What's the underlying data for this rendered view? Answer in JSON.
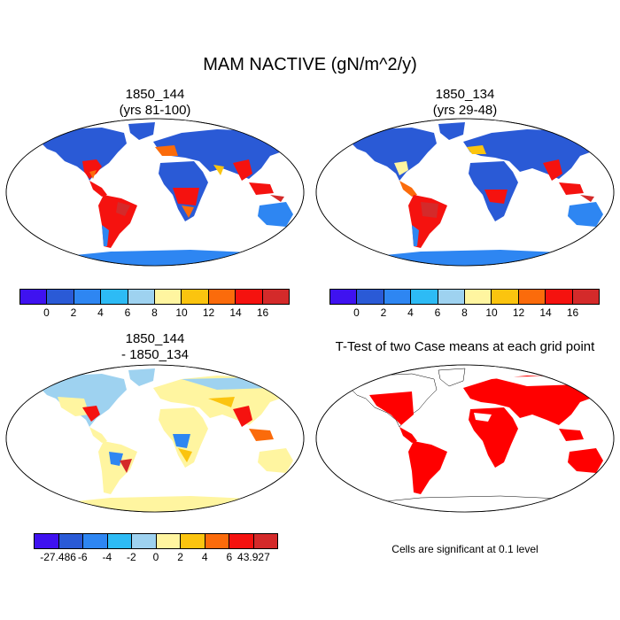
{
  "figure": {
    "title": "MAM NACTIVE (gN/m^2/y)"
  },
  "panels": [
    {
      "title_line1": "1850_144",
      "title_line2": "(yrs 81-100)",
      "colorbar": {
        "colors": [
          "#3f12f0",
          "#2a5ad6",
          "#2e86f2",
          "#2dbbf5",
          "#9ed2f0",
          "#fff5a0",
          "#fbc40f",
          "#fb6b0b",
          "#f5120f",
          "#d42a2a"
        ],
        "tick_labels": [
          "0",
          "2",
          "4",
          "6",
          "8",
          "10",
          "12",
          "14",
          "16"
        ]
      }
    },
    {
      "title_line1": "1850_134",
      "title_line2": "(yrs 29-48)",
      "colorbar": {
        "colors": [
          "#3f12f0",
          "#2a5ad6",
          "#2e86f2",
          "#2dbbf5",
          "#9ed2f0",
          "#fff5a0",
          "#fbc40f",
          "#fb6b0b",
          "#f5120f",
          "#d42a2a"
        ],
        "tick_labels": [
          "0",
          "2",
          "4",
          "6",
          "8",
          "10",
          "12",
          "14",
          "16"
        ]
      }
    },
    {
      "title_line1": "1850_144",
      "title_line2": "- 1850_134",
      "colorbar": {
        "colors": [
          "#3f12f0",
          "#2a5ad6",
          "#2e86f2",
          "#2dbbf5",
          "#9ed2f0",
          "#fff5a0",
          "#fbc40f",
          "#fb6b0b",
          "#f5120f",
          "#d42a2a"
        ],
        "tick_labels": [
          "-27.486",
          "-6",
          "-4",
          "-2",
          "0",
          "2",
          "4",
          "6",
          "43.927"
        ]
      }
    },
    {
      "title_line1": "T-Test of two Case means at each grid point",
      "note": "Cells are significant at 0.1 level"
    }
  ]
}
